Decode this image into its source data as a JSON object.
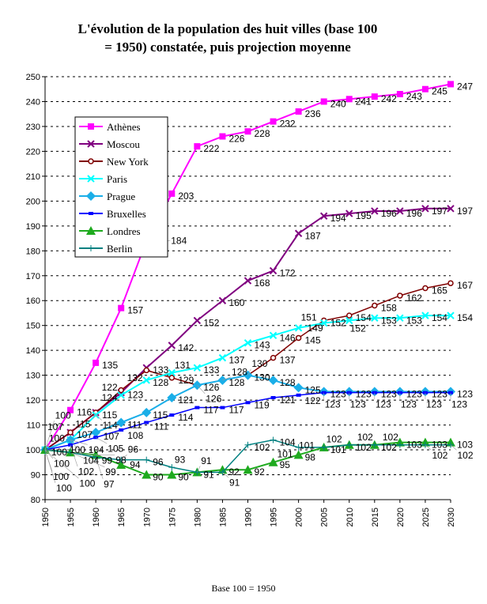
{
  "chart_data": {
    "type": "line",
    "title_lines": [
      "L'évolution de la population des huit villes (base 100",
      "= 1950) constatée, puis projection moyenne"
    ],
    "xlabel": "Base 100 = 1950",
    "ylabel": "",
    "ylim": [
      80,
      250
    ],
    "yticks": [
      80,
      90,
      100,
      110,
      120,
      130,
      140,
      150,
      160,
      170,
      180,
      190,
      200,
      210,
      220,
      230,
      240,
      250
    ],
    "grid": "horizontal dashed",
    "legend_position": "top-left",
    "x": [
      1950,
      1955,
      1960,
      1965,
      1970,
      1975,
      1980,
      1985,
      1990,
      1995,
      2000,
      2005,
      2010,
      2015,
      2020,
      2025,
      2030
    ],
    "series": [
      {
        "name": "Athènes",
        "color": "#FF00FF",
        "marker": "square",
        "values": [
          100,
          116,
          135,
          157,
          184,
          203,
          222,
          226,
          228,
          232,
          236,
          240,
          241,
          242,
          243,
          245,
          247
        ]
      },
      {
        "name": "Moscou",
        "color": "#800080",
        "marker": "x",
        "values": [
          100,
          107,
          115,
          123,
          133,
          142,
          152,
          160,
          168,
          172,
          187,
          194,
          195,
          196,
          196,
          197,
          197
        ]
      },
      {
        "name": "New York",
        "color": "#800000",
        "marker": "circle",
        "values": [
          100,
          107,
          115,
          124,
          132,
          129,
          126,
          128,
          130,
          137,
          145,
          152,
          154,
          158,
          162,
          165,
          167
        ]
      },
      {
        "name": "Paris",
        "color": "#00FFFF",
        "marker": "x",
        "values": [
          100,
          104,
          114,
          122,
          128,
          131,
          133,
          137,
          143,
          146,
          149,
          151,
          152,
          153,
          153,
          154,
          154
        ]
      },
      {
        "name": "Prague",
        "color": "#1AAEE8",
        "marker": "diamond",
        "values": [
          100,
          104,
          107,
          111,
          115,
          121,
          126,
          128,
          130,
          128,
          125,
          123.4,
          123.4,
          123.4,
          123.4,
          123.4,
          123.4
        ]
      },
      {
        "name": "Bruxelles",
        "color": "#0000FF",
        "marker": "dash",
        "values": [
          100,
          102,
          105,
          108,
          111,
          114,
          117,
          117,
          119,
          121,
          122,
          123,
          123,
          123,
          123,
          123,
          123
        ]
      },
      {
        "name": "Londres",
        "color": "#1EAA1E",
        "marker": "triangle",
        "values": [
          100,
          99,
          98,
          94,
          90,
          90,
          91,
          92,
          92,
          95,
          98,
          101,
          102,
          102,
          103,
          103,
          103
        ]
      },
      {
        "name": "Berlin",
        "color": "#008080",
        "marker": "plus",
        "values": [
          100,
          99,
          97,
          96,
          96,
          93,
          91,
          91,
          102,
          104,
          101,
          101,
          102,
          102,
          102,
          102,
          102
        ]
      }
    ]
  }
}
